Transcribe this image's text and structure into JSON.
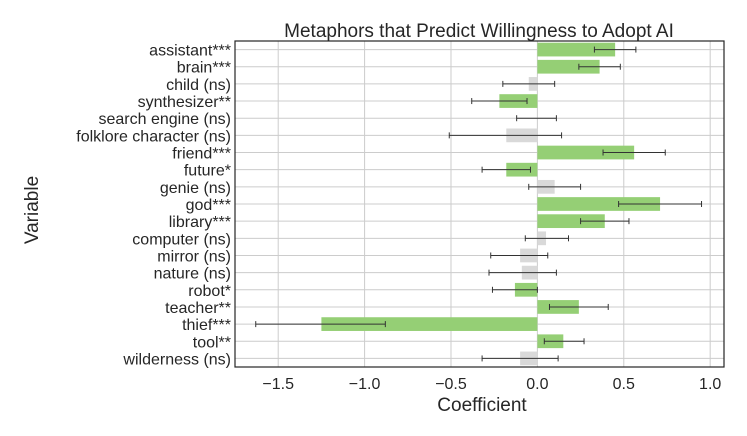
{
  "chart_data": {
    "type": "bar",
    "orientation": "horizontal",
    "title": "Metaphors that Predict Willingness to Adopt AI",
    "xlabel": "Coefficient",
    "ylabel": "Variable",
    "xlim": [
      -1.75,
      1.08
    ],
    "xticks": [
      -1.5,
      -1.0,
      -0.5,
      0.0,
      0.5,
      1.0
    ],
    "xtick_labels": [
      "−1.5",
      "−1.0",
      "−0.5",
      "0.0",
      "0.5",
      "1.0"
    ],
    "grid": true,
    "colors": {
      "significant": "#95cf75",
      "not_significant": "#d9d9d9",
      "error_bar": "#333333"
    },
    "categories": [
      "assistant***",
      "brain***",
      "child (ns)",
      "synthesizer**",
      "search engine (ns)",
      "folklore character (ns)",
      "friend***",
      "future*",
      "genie (ns)",
      "god***",
      "library***",
      "computer (ns)",
      "mirror (ns)",
      "nature (ns)",
      "robot*",
      "teacher**",
      "thief***",
      "tool**",
      "wilderness (ns)"
    ],
    "values": [
      0.45,
      0.36,
      -0.05,
      -0.22,
      0.0,
      -0.18,
      0.56,
      -0.18,
      0.1,
      0.71,
      0.39,
      0.05,
      -0.1,
      -0.09,
      -0.13,
      0.24,
      -1.25,
      0.15,
      -0.1
    ],
    "ci_low": [
      0.33,
      0.24,
      -0.2,
      -0.38,
      -0.12,
      -0.51,
      0.38,
      -0.32,
      -0.05,
      0.47,
      0.25,
      -0.07,
      -0.27,
      -0.28,
      -0.26,
      0.07,
      -1.63,
      0.04,
      -0.32
    ],
    "ci_high": [
      0.57,
      0.48,
      0.1,
      -0.06,
      0.11,
      0.14,
      0.74,
      -0.04,
      0.25,
      0.95,
      0.53,
      0.18,
      0.06,
      0.11,
      0.0,
      0.41,
      -0.88,
      0.27,
      0.12
    ],
    "significant": [
      true,
      true,
      false,
      true,
      false,
      false,
      true,
      true,
      false,
      true,
      true,
      false,
      false,
      false,
      true,
      true,
      true,
      true,
      false
    ]
  }
}
